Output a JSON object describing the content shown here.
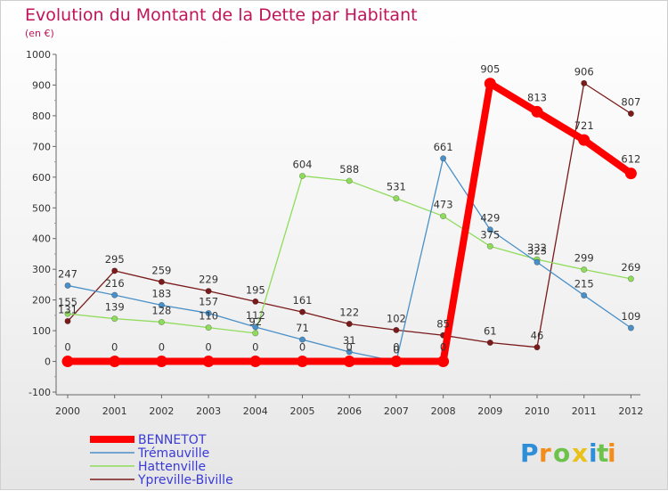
{
  "chart_data": {
    "type": "line",
    "title": "Evolution du Montant de la Dette par Habitant",
    "subtitle": "(en €)",
    "x": [
      "2000",
      "2001",
      "2002",
      "2003",
      "2004",
      "2005",
      "2006",
      "2007",
      "2008",
      "2009",
      "2010",
      "2011",
      "2012"
    ],
    "ylim": [
      -100,
      1000
    ],
    "yticks": [
      "-100",
      "0",
      "100",
      "200",
      "300",
      "400",
      "500",
      "600",
      "700",
      "800",
      "900",
      "1000"
    ],
    "grid": false,
    "legend_position": "bottom-left",
    "series": [
      {
        "name": "BENNETOT",
        "color": "#ff0000",
        "values": [
          0,
          0,
          0,
          0,
          0,
          0,
          0,
          0,
          0,
          905,
          813,
          721,
          612
        ],
        "labels": [
          "0",
          "0",
          "0",
          "0",
          "0",
          "0",
          "0",
          "0",
          "0",
          "905",
          "813",
          "721",
          "612"
        ]
      },
      {
        "name": "Trémauville",
        "color": "#4a90c8",
        "values": [
          247,
          216,
          183,
          157,
          112,
          71,
          31,
          0,
          661,
          429,
          323,
          215,
          109
        ],
        "labels": [
          "247",
          "216",
          "183",
          "157",
          "112",
          "71",
          "31",
          "0",
          "661",
          "429",
          "323",
          "215",
          "109"
        ]
      },
      {
        "name": "Hattenville",
        "color": "#8fdc5c",
        "values": [
          155,
          139,
          128,
          110,
          92,
          604,
          588,
          531,
          473,
          375,
          332,
          299,
          269
        ],
        "labels": [
          "155",
          "139",
          "128",
          "110",
          "92",
          "604",
          "588",
          "531",
          "473",
          "375",
          "332",
          "299",
          "269"
        ]
      },
      {
        "name": "Ypreville-Biville",
        "color": "#7a1a1a",
        "values": [
          131,
          295,
          259,
          229,
          195,
          161,
          122,
          102,
          85,
          61,
          46,
          906,
          807
        ],
        "labels": [
          "131",
          "295",
          "259",
          "229",
          "195",
          "161",
          "122",
          "102",
          "85",
          "61",
          "46",
          "906",
          "807"
        ]
      }
    ]
  },
  "brand": {
    "letters": [
      "P",
      "r",
      "o",
      "x",
      "i",
      "t",
      "i"
    ]
  }
}
